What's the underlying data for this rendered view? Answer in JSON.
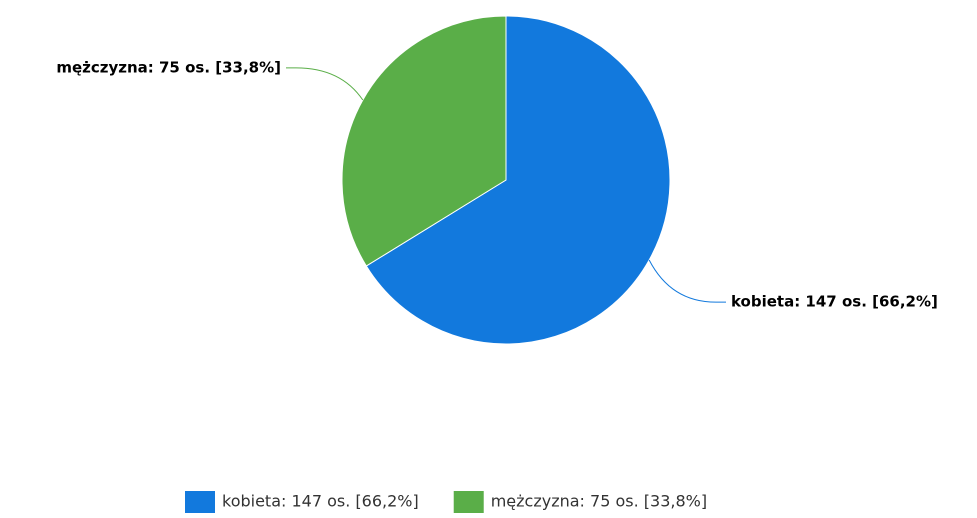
{
  "chart_data": {
    "type": "pie",
    "values": [
      147,
      75
    ],
    "value_labels": [
      "kobieta: 147 os. [66,2%]",
      "mężczyzna: 75 os. [33,8%]"
    ],
    "colors": [
      "#1279dd",
      "#5aae48"
    ],
    "legend": "bottom"
  }
}
